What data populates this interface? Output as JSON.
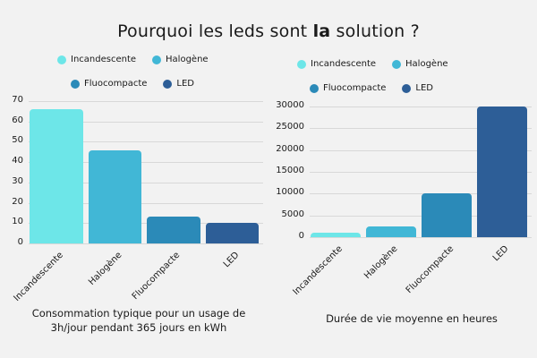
{
  "title": {
    "prefix": "Pourquoi les leds sont ",
    "bold": "la",
    "suffix": " solution ?"
  },
  "colors": {
    "Incandescente": "#6de6e8",
    "Halogène": "#41b7d6",
    "Fluocompacte": "#2b8ab8",
    "LED": "#2d5e97",
    "background": "#f2f2f2"
  },
  "legend": [
    "Incandescente",
    "Halogène",
    "Fluocompacte",
    "LED"
  ],
  "chart_data": [
    {
      "type": "bar",
      "title": "Consommation typique pour un usage de 3h/jour pendant 365 jours en kWh",
      "categories": [
        "Incandescente",
        "Halogène",
        "Fluocompacte",
        "LED"
      ],
      "values": [
        66,
        46,
        13,
        10
      ],
      "xlabel": "Consommation typique pour un usage de 3h/jour pendant 365 jours en kWh",
      "ylabel": "",
      "ylim": [
        0,
        70
      ],
      "yticks": [
        0,
        10,
        20,
        30,
        40,
        50,
        60,
        70
      ],
      "grid": true,
      "legend_position": "top"
    },
    {
      "type": "bar",
      "title": "Durée de vie moyenne en heures",
      "categories": [
        "Incandescente",
        "Halogène",
        "Fluocompacte",
        "LED"
      ],
      "values": [
        1000,
        2500,
        10000,
        30000
      ],
      "xlabel": "Durée de vie moyenne en heures",
      "ylabel": "",
      "ylim": [
        0,
        30000
      ],
      "yticks": [
        0,
        5000,
        10000,
        15000,
        20000,
        25000,
        30000
      ],
      "grid": true,
      "legend_position": "top"
    }
  ],
  "captions": {
    "left_line1": "Consommation typique pour un usage de",
    "left_line2": "3h/jour pendant 365 jours en kWh",
    "right": "Durée de vie moyenne en heures"
  }
}
